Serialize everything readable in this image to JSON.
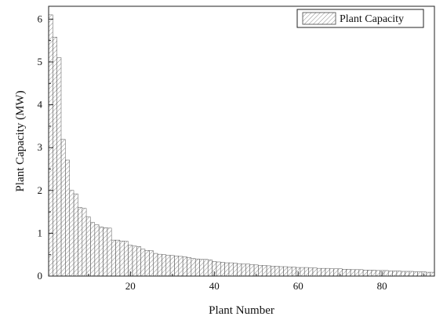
{
  "chart_data": {
    "type": "bar",
    "xlabel": "Plant Number",
    "ylabel": "Plant Capacity (MW)",
    "xlim": [
      0.5,
      92.5
    ],
    "ylim": [
      0,
      6.3
    ],
    "x_ticks": [
      20,
      40,
      60,
      80
    ],
    "y_ticks": [
      0,
      1,
      2,
      3,
      4,
      5,
      6
    ],
    "grid": false,
    "legend_position": "top-right",
    "series": [
      {
        "name": "Plant Capacity",
        "x": [
          1,
          2,
          3,
          4,
          5,
          6,
          7,
          8,
          9,
          10,
          11,
          12,
          13,
          14,
          15,
          16,
          17,
          18,
          19,
          20,
          21,
          22,
          23,
          24,
          25,
          26,
          27,
          28,
          29,
          30,
          31,
          32,
          33,
          34,
          35,
          36,
          37,
          38,
          39,
          40,
          41,
          42,
          43,
          44,
          45,
          46,
          47,
          48,
          49,
          50,
          51,
          52,
          53,
          54,
          55,
          56,
          57,
          58,
          59,
          60,
          61,
          62,
          63,
          64,
          65,
          66,
          67,
          68,
          69,
          70,
          71,
          72,
          73,
          74,
          75,
          76,
          77,
          78,
          79,
          80,
          81,
          82,
          83,
          84,
          85,
          86,
          87,
          88,
          89,
          90,
          91,
          92
        ],
        "values": [
          6.1,
          5.58,
          5.1,
          3.19,
          2.71,
          2.0,
          1.92,
          1.6,
          1.58,
          1.38,
          1.25,
          1.2,
          1.15,
          1.13,
          1.12,
          0.84,
          0.84,
          0.82,
          0.81,
          0.72,
          0.7,
          0.69,
          0.63,
          0.6,
          0.59,
          0.53,
          0.51,
          0.5,
          0.49,
          0.48,
          0.47,
          0.46,
          0.45,
          0.43,
          0.41,
          0.4,
          0.39,
          0.39,
          0.38,
          0.34,
          0.33,
          0.32,
          0.31,
          0.31,
          0.3,
          0.29,
          0.28,
          0.28,
          0.27,
          0.26,
          0.25,
          0.25,
          0.24,
          0.23,
          0.23,
          0.22,
          0.22,
          0.21,
          0.21,
          0.2,
          0.2,
          0.2,
          0.19,
          0.19,
          0.18,
          0.18,
          0.18,
          0.17,
          0.17,
          0.17,
          0.16,
          0.16,
          0.15,
          0.15,
          0.15,
          0.14,
          0.14,
          0.14,
          0.13,
          0.13,
          0.13,
          0.12,
          0.12,
          0.12,
          0.11,
          0.11,
          0.11,
          0.1,
          0.1,
          0.1,
          0.09,
          0.09
        ]
      }
    ]
  }
}
